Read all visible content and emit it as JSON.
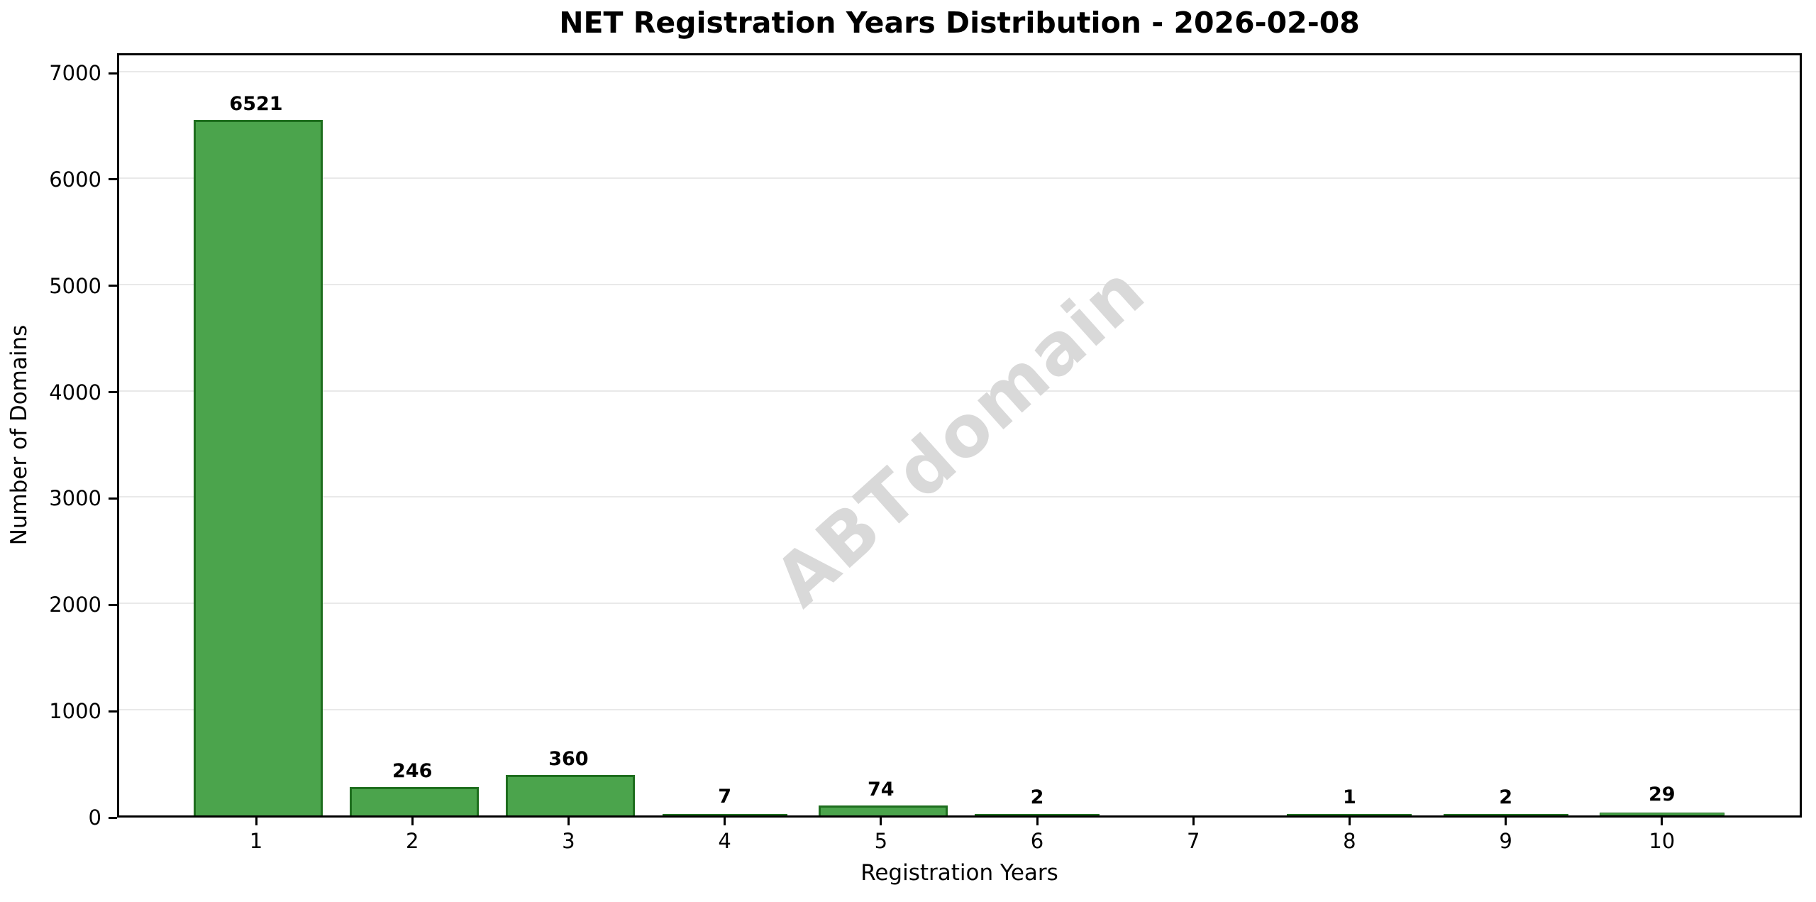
{
  "chart_data": {
    "type": "bar",
    "title": "NET Registration Years Distribution - 2026-02-08",
    "xlabel": "Registration Years",
    "ylabel": "Number of Domains",
    "categories": [
      "1",
      "2",
      "3",
      "4",
      "5",
      "6",
      "7",
      "8",
      "9",
      "10"
    ],
    "values": [
      6521,
      246,
      360,
      7,
      74,
      2,
      0,
      1,
      2,
      29
    ],
    "bar_labels": [
      "6521",
      "246",
      "360",
      "7",
      "74",
      "2",
      "",
      "1",
      "2",
      "29"
    ],
    "y_ticks": [
      0,
      1000,
      2000,
      3000,
      4000,
      5000,
      6000,
      7000
    ],
    "ylim": [
      0,
      7187
    ],
    "grid": "horizontal",
    "legend_position": "none",
    "colors": {
      "bar_fill": "#4BA44C",
      "bar_edge": "#1E6E1E",
      "grid_color": "#E9E9E9",
      "axis_color": "#000000",
      "watermark_color": "#D9D9D9"
    },
    "watermark": {
      "text": "ABTdomain",
      "rotation_deg": -42
    }
  }
}
